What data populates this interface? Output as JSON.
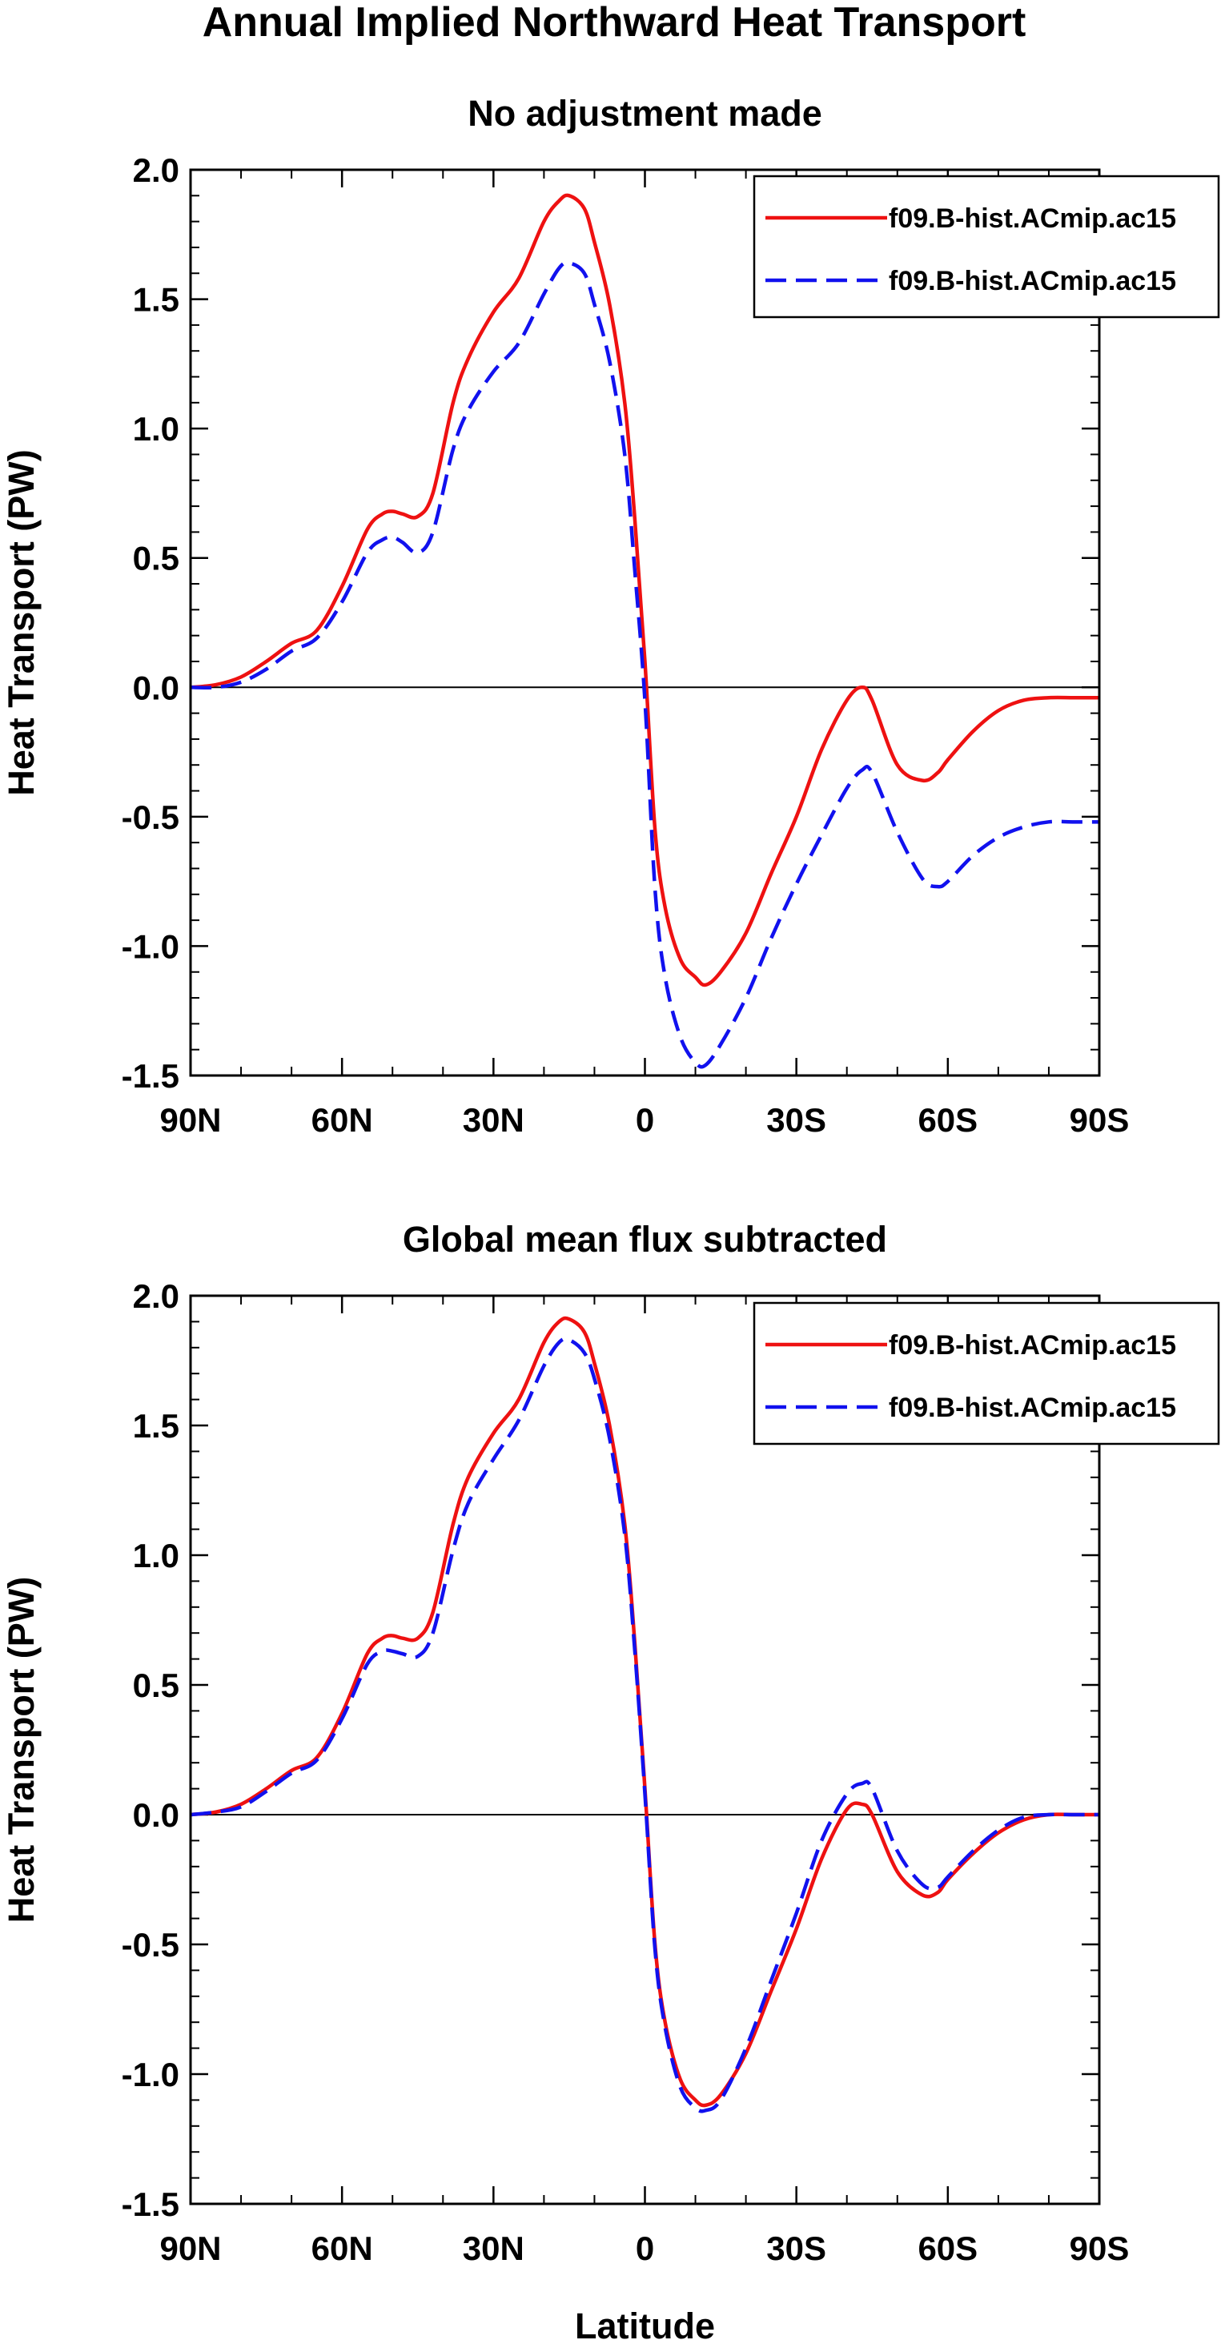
{
  "figure": {
    "title": "Annual Implied Northward Heat Transport"
  },
  "chart_data": [
    {
      "type": "line",
      "title": "No adjustment made",
      "xlabel": "",
      "ylabel": "Heat Transport (PW)",
      "xlim": [
        90,
        -90
      ],
      "ylim": [
        -1.5,
        2.0
      ],
      "xticks": [
        90,
        60,
        30,
        0,
        -30,
        -60,
        -90
      ],
      "xtick_labels": [
        "90N",
        "60N",
        "30N",
        "0",
        "30S",
        "60S",
        "90S"
      ],
      "yticks": [
        -1.5,
        -1.0,
        -0.5,
        0.0,
        0.5,
        1.0,
        1.5,
        2.0
      ],
      "ytick_labels": [
        "-1.5",
        "-1.0",
        "-0.5",
        "0.0",
        "0.5",
        "1.0",
        "1.5",
        "2.0"
      ],
      "zero_line": true,
      "legend_position": "top-right",
      "series": [
        {
          "name": "f09.B-hist.ACmip.ac15",
          "color": "#ee1111",
          "dash": "solid",
          "x": [
            90,
            85,
            80,
            75,
            70,
            65,
            60,
            55,
            52,
            50,
            48,
            45,
            42,
            38,
            35,
            30,
            25,
            20,
            17,
            15,
            12,
            10,
            7,
            4,
            2,
            0,
            -2,
            -4,
            -7,
            -10,
            -12,
            -15,
            -20,
            -25,
            -30,
            -35,
            -40,
            -43,
            -45,
            -50,
            -55,
            -58,
            -60,
            -65,
            -70,
            -75,
            -80,
            -85,
            -90
          ],
          "y": [
            0.0,
            0.01,
            0.04,
            0.1,
            0.17,
            0.22,
            0.39,
            0.61,
            0.67,
            0.68,
            0.67,
            0.66,
            0.75,
            1.1,
            1.27,
            1.45,
            1.58,
            1.8,
            1.88,
            1.9,
            1.85,
            1.72,
            1.48,
            1.1,
            0.65,
            0.1,
            -0.55,
            -0.85,
            -1.05,
            -1.12,
            -1.15,
            -1.1,
            -0.95,
            -0.72,
            -0.5,
            -0.24,
            -0.05,
            0.0,
            -0.05,
            -0.3,
            -0.36,
            -0.33,
            -0.28,
            -0.17,
            -0.09,
            -0.05,
            -0.04,
            -0.04,
            -0.04
          ]
        },
        {
          "name": "f09.B-hist.ACmip.ac15",
          "color": "#1111ee",
          "dash": "dashed",
          "x": [
            90,
            85,
            80,
            75,
            70,
            65,
            60,
            55,
            52,
            50,
            48,
            45,
            42,
            38,
            35,
            30,
            25,
            20,
            17,
            15,
            12,
            10,
            7,
            4,
            2,
            0,
            -2,
            -4,
            -7,
            -10,
            -12,
            -15,
            -20,
            -25,
            -30,
            -35,
            -40,
            -43,
            -45,
            -50,
            -55,
            -58,
            -60,
            -65,
            -70,
            -75,
            -80,
            -85,
            -90
          ],
          "y": [
            0.0,
            0.0,
            0.02,
            0.07,
            0.14,
            0.19,
            0.33,
            0.52,
            0.57,
            0.58,
            0.56,
            0.52,
            0.6,
            0.92,
            1.07,
            1.22,
            1.33,
            1.52,
            1.62,
            1.64,
            1.6,
            1.48,
            1.26,
            0.9,
            0.45,
            -0.05,
            -0.78,
            -1.12,
            -1.35,
            -1.45,
            -1.46,
            -1.38,
            -1.2,
            -0.97,
            -0.76,
            -0.57,
            -0.39,
            -0.32,
            -0.33,
            -0.56,
            -0.74,
            -0.77,
            -0.75,
            -0.65,
            -0.58,
            -0.54,
            -0.52,
            -0.52,
            -0.52
          ]
        }
      ]
    },
    {
      "type": "line",
      "title": "Global mean flux subtracted",
      "xlabel": "Latitude",
      "ylabel": "Heat Transport (PW)",
      "xlim": [
        90,
        -90
      ],
      "ylim": [
        -1.5,
        2.0
      ],
      "xticks": [
        90,
        60,
        30,
        0,
        -30,
        -60,
        -90
      ],
      "xtick_labels": [
        "90N",
        "60N",
        "30N",
        "0",
        "30S",
        "60S",
        "90S"
      ],
      "yticks": [
        -1.5,
        -1.0,
        -0.5,
        0.0,
        0.5,
        1.0,
        1.5,
        2.0
      ],
      "ytick_labels": [
        "-1.5",
        "-1.0",
        "-0.5",
        "0.0",
        "0.5",
        "1.0",
        "1.5",
        "2.0"
      ],
      "zero_line": true,
      "legend_position": "top-right",
      "series": [
        {
          "name": "f09.B-hist.ACmip.ac15",
          "color": "#ee1111",
          "dash": "solid",
          "x": [
            90,
            85,
            80,
            75,
            70,
            65,
            60,
            55,
            52,
            50,
            48,
            45,
            42,
            38,
            35,
            30,
            25,
            20,
            17,
            15,
            12,
            10,
            7,
            4,
            2,
            0,
            -2,
            -4,
            -7,
            -10,
            -12,
            -15,
            -20,
            -25,
            -30,
            -35,
            -40,
            -43,
            -45,
            -50,
            -55,
            -58,
            -60,
            -65,
            -70,
            -75,
            -80,
            -85,
            -90
          ],
          "y": [
            0.0,
            0.01,
            0.04,
            0.1,
            0.17,
            0.22,
            0.39,
            0.62,
            0.68,
            0.69,
            0.68,
            0.68,
            0.78,
            1.12,
            1.3,
            1.47,
            1.6,
            1.82,
            1.9,
            1.91,
            1.86,
            1.74,
            1.5,
            1.12,
            0.66,
            0.1,
            -0.5,
            -0.8,
            -1.02,
            -1.1,
            -1.12,
            -1.08,
            -0.92,
            -0.68,
            -0.44,
            -0.17,
            0.02,
            0.04,
            0.0,
            -0.22,
            -0.31,
            -0.3,
            -0.25,
            -0.15,
            -0.07,
            -0.02,
            0.0,
            0.0,
            0.0
          ]
        },
        {
          "name": "f09.B-hist.ACmip.ac15",
          "color": "#1111ee",
          "dash": "dashed",
          "x": [
            90,
            85,
            80,
            75,
            70,
            65,
            60,
            55,
            52,
            50,
            48,
            45,
            42,
            38,
            35,
            30,
            25,
            20,
            17,
            15,
            12,
            10,
            7,
            4,
            2,
            0,
            -2,
            -4,
            -7,
            -10,
            -12,
            -15,
            -20,
            -25,
            -30,
            -35,
            -40,
            -43,
            -45,
            -50,
            -55,
            -58,
            -60,
            -65,
            -70,
            -75,
            -80,
            -85,
            -90
          ],
          "y": [
            0.0,
            0.01,
            0.03,
            0.09,
            0.16,
            0.21,
            0.37,
            0.58,
            0.63,
            0.63,
            0.62,
            0.61,
            0.7,
            1.02,
            1.2,
            1.37,
            1.52,
            1.73,
            1.82,
            1.83,
            1.78,
            1.68,
            1.45,
            1.08,
            0.63,
            0.08,
            -0.52,
            -0.82,
            -1.05,
            -1.13,
            -1.14,
            -1.1,
            -0.9,
            -0.64,
            -0.38,
            -0.1,
            0.08,
            0.12,
            0.1,
            -0.14,
            -0.27,
            -0.28,
            -0.24,
            -0.14,
            -0.06,
            -0.01,
            0.0,
            0.0,
            0.0
          ]
        }
      ]
    }
  ]
}
